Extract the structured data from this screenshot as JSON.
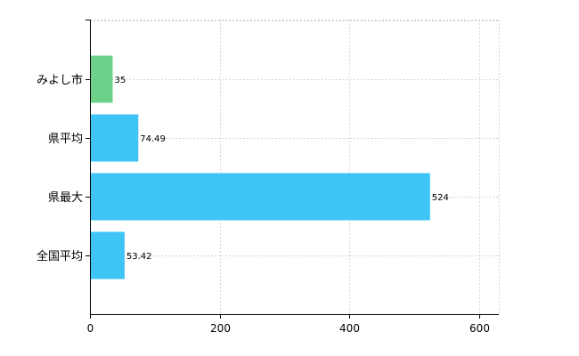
{
  "chart_data": {
    "type": "bar",
    "orientation": "horizontal",
    "title": "",
    "xlabel": "",
    "ylabel": "",
    "categories": [
      "みよし市",
      "県平均",
      "県最大",
      "全国平均"
    ],
    "values": [
      35,
      74.49,
      524,
      53.42
    ],
    "value_labels": [
      "35",
      "74.49",
      "524",
      "53.42"
    ],
    "colors": [
      "#6dd18a",
      "#3ec4f5",
      "#3ec4f5",
      "#3ec4f5"
    ],
    "xlim": [
      0,
      630
    ],
    "xticks": [
      0,
      200,
      400,
      600
    ],
    "grid": true,
    "legend": "none"
  }
}
